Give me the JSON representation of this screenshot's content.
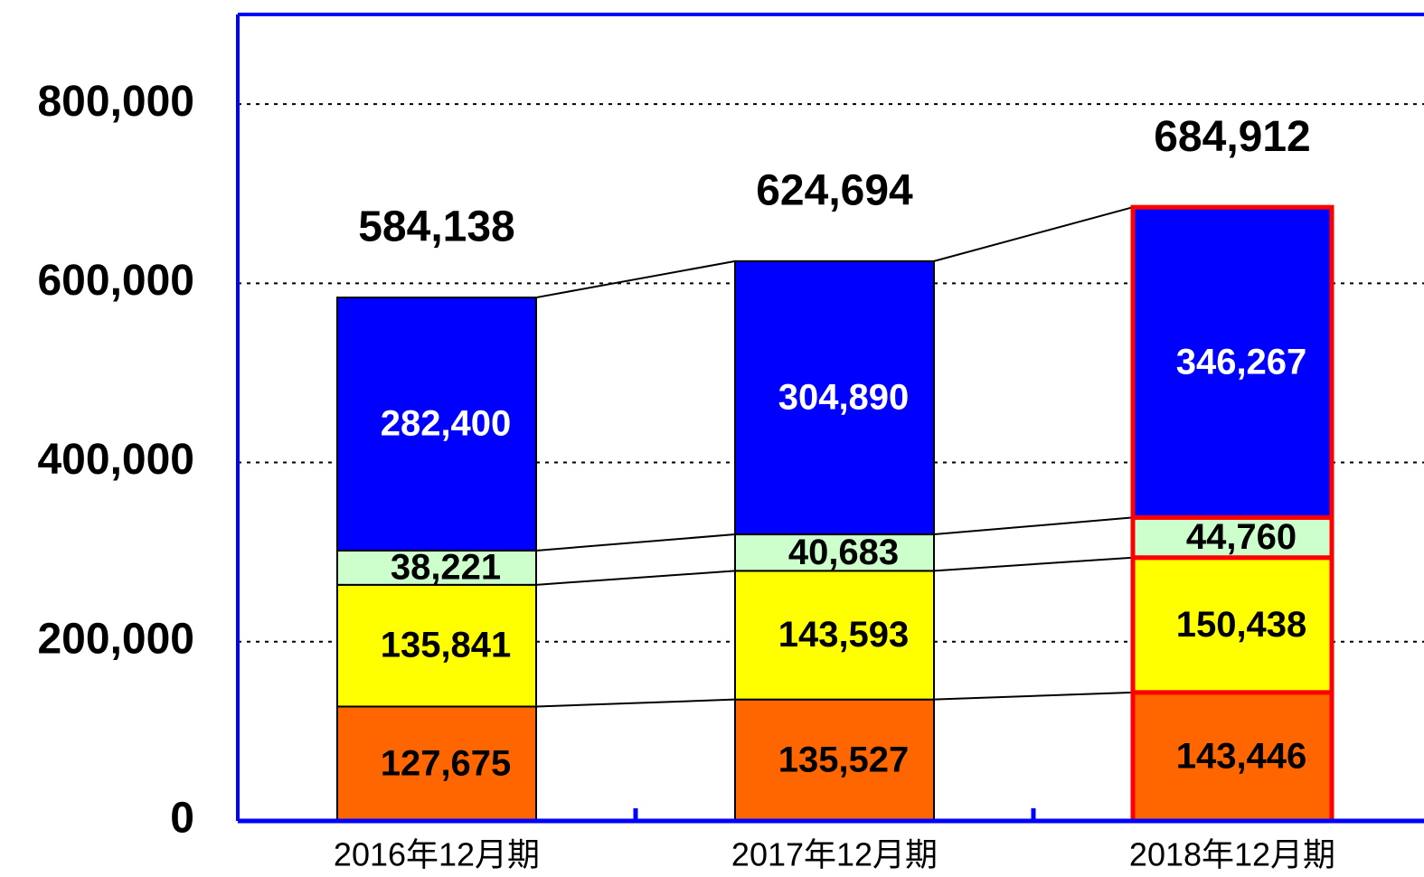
{
  "chart_data": {
    "type": "stacked_bar",
    "categories": [
      "2016年12月期",
      "2017年12月期",
      "2018年12月期"
    ],
    "series": [
      {
        "color": "#ff6600",
        "label_color": "#000000",
        "values": [
          127675,
          135527,
          143446
        ],
        "value_labels": [
          "127,675",
          "135,527",
          "143,446"
        ]
      },
      {
        "color": "#ffff00",
        "label_color": "#000000",
        "values": [
          135841,
          143593,
          150438
        ],
        "value_labels": [
          "135,841",
          "143,593",
          "150,438"
        ]
      },
      {
        "color": "#ccffcc",
        "label_color": "#000000",
        "values": [
          38221,
          40683,
          44760
        ],
        "value_labels": [
          "38,221",
          "40,683",
          "44,760"
        ]
      },
      {
        "color": "#0000ff",
        "label_color": "#ffffff",
        "values": [
          282400,
          304890,
          346267
        ],
        "value_labels": [
          "282,400",
          "304,890",
          "346,267"
        ]
      }
    ],
    "totals": {
      "values": [
        584138,
        624694,
        684912
      ],
      "value_labels": [
        "584,138",
        "624,694",
        "684,912"
      ]
    },
    "ylim": [
      0,
      900000
    ],
    "yticks": [
      0,
      {
        "value": 200000,
        "label": "200,000"
      },
      {
        "value": 400000,
        "label": "400,000"
      },
      {
        "value": 600000,
        "label": "600,000"
      },
      {
        "value": 800000,
        "label": "800,000"
      }
    ],
    "grid": true,
    "axis_color": "#0000ff",
    "highlight": {
      "index": 2,
      "color": "#ff0000"
    }
  }
}
